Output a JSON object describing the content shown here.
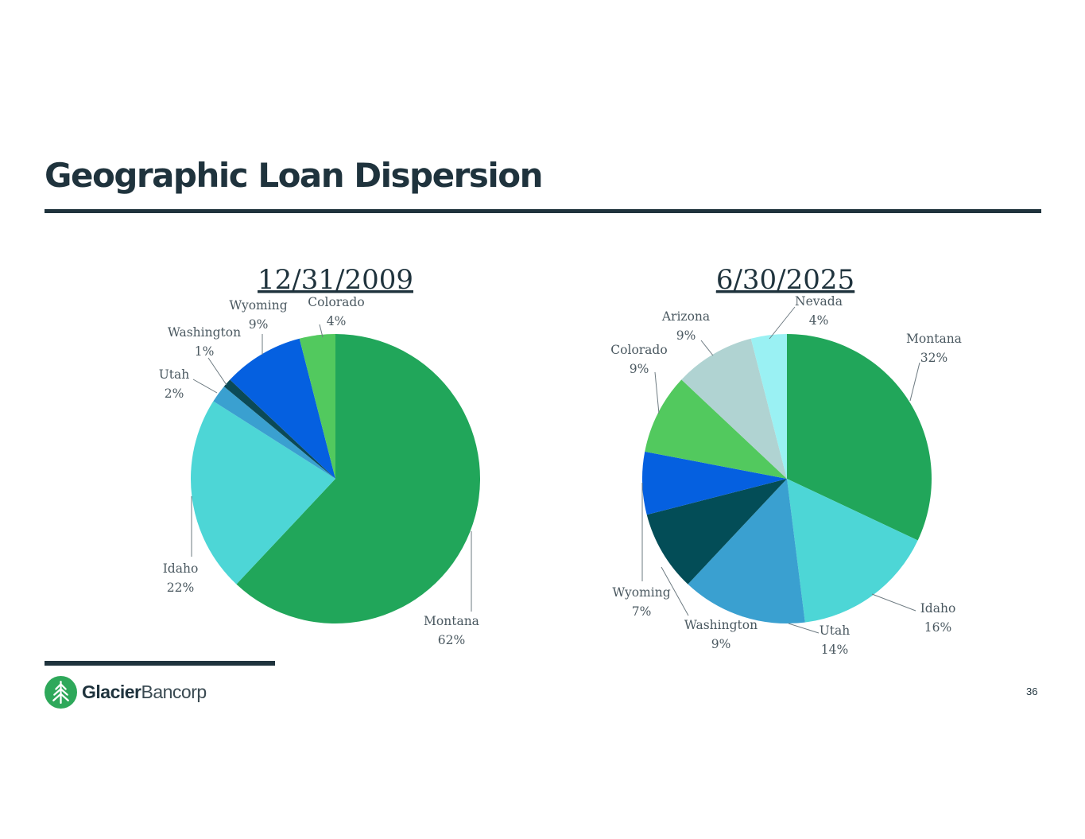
{
  "page": {
    "title": "Geographic Loan Dispersion",
    "page_number": "36"
  },
  "logo": {
    "word_bold": "Glacier",
    "word_light": "Bancorp",
    "icon": "glacier-pine-tree-logo",
    "color": "#2ea85a"
  },
  "chart_data": [
    {
      "type": "pie",
      "title": "12/31/2009",
      "start_angle": "12 o'clock",
      "direction": "clockwise",
      "slices": [
        {
          "label": "Montana",
          "value": 62,
          "display": "62%",
          "color": "#21a65a"
        },
        {
          "label": "Idaho",
          "value": 22,
          "display": "22%",
          "color": "#4dd6d6"
        },
        {
          "label": "Utah",
          "value": 2,
          "display": "2%",
          "color": "#3aa0d0"
        },
        {
          "label": "Washington",
          "value": 1,
          "display": "1%",
          "color": "#0b4a57"
        },
        {
          "label": "Wyoming",
          "value": 9,
          "display": "9%",
          "color": "#0560e0"
        },
        {
          "label": "Colorado",
          "value": 4,
          "display": "4%",
          "color": "#52c95e"
        }
      ]
    },
    {
      "type": "pie",
      "title": "6/30/2025",
      "start_angle": "12 o'clock",
      "direction": "clockwise",
      "slices": [
        {
          "label": "Montana",
          "value": 32,
          "display": "32%",
          "color": "#21a65a"
        },
        {
          "label": "Idaho",
          "value": 16,
          "display": "16%",
          "color": "#4dd6d6"
        },
        {
          "label": "Utah",
          "value": 14,
          "display": "14%",
          "color": "#3aa0d0"
        },
        {
          "label": "Washington",
          "value": 9,
          "display": "9%",
          "color": "#034d57"
        },
        {
          "label": "Wyoming",
          "value": 7,
          "display": "7%",
          "color": "#0560e0"
        },
        {
          "label": "Colorado",
          "value": 9,
          "display": "9%",
          "color": "#52c95e"
        },
        {
          "label": "Arizona",
          "value": 9,
          "display": "9%",
          "color": "#b0d3d2"
        },
        {
          "label": "Nevada",
          "value": 4,
          "display": "4%",
          "color": "#9af1f3"
        }
      ]
    }
  ]
}
